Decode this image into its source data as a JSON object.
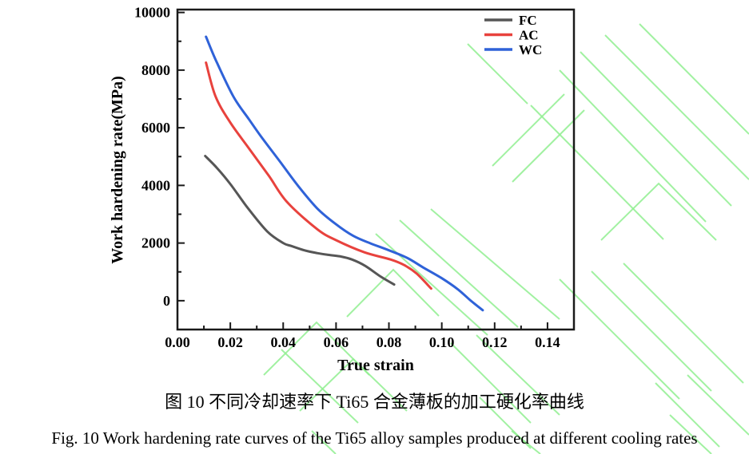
{
  "figure": {
    "caption_zh": "图 10  不同冷却速率下 Ti65 合金薄板的加工硬化率曲线",
    "caption_en": "Fig. 10 Work hardening rate curves of the Ti65 alloy samples produced at different cooling rates"
  },
  "watermark": {
    "color": "#90ee90"
  },
  "chart_data": {
    "type": "line",
    "title": "",
    "xlabel": "True strain",
    "ylabel": "Work hardening rate(MPa)",
    "xlim": [
      0,
      0.15
    ],
    "ylim": [
      -1000,
      10100
    ],
    "x_major_ticks": [
      0,
      0.02,
      0.04,
      0.06,
      0.08,
      0.1,
      0.12,
      0.14
    ],
    "x_minor_ticks": [
      0.01,
      0.03,
      0.05,
      0.07,
      0.09,
      0.11,
      0.13
    ],
    "y_major_ticks": [
      0,
      2000,
      4000,
      6000,
      8000,
      10000
    ],
    "y_minor_ticks": [
      1000,
      3000,
      5000,
      7000,
      9000
    ],
    "grid": false,
    "legend_position": "upper right inside",
    "series": [
      {
        "name": "FC",
        "color": "#565656",
        "points": [
          [
            0.0105,
            5020
          ],
          [
            0.015,
            4600
          ],
          [
            0.02,
            4050
          ],
          [
            0.0265,
            3230
          ],
          [
            0.034,
            2400
          ],
          [
            0.04,
            2000
          ],
          [
            0.043,
            1900
          ],
          [
            0.048,
            1750
          ],
          [
            0.053,
            1650
          ],
          [
            0.057,
            1590
          ],
          [
            0.062,
            1530
          ],
          [
            0.066,
            1430
          ],
          [
            0.071,
            1210
          ],
          [
            0.077,
            830
          ],
          [
            0.082,
            560
          ]
        ]
      },
      {
        "name": "AC",
        "color": "#e8423d",
        "points": [
          [
            0.0108,
            8260
          ],
          [
            0.0144,
            7090
          ],
          [
            0.02,
            6180
          ],
          [
            0.0274,
            5240
          ],
          [
            0.0346,
            4330
          ],
          [
            0.0415,
            3420
          ],
          [
            0.0529,
            2480
          ],
          [
            0.06,
            2100
          ],
          [
            0.0707,
            1680
          ],
          [
            0.0806,
            1430
          ],
          [
            0.0857,
            1240
          ],
          [
            0.0905,
            940
          ],
          [
            0.096,
            420
          ]
        ]
      },
      {
        "name": "WC",
        "color": "#2f62d8",
        "points": [
          [
            0.0108,
            9160
          ],
          [
            0.0145,
            8350
          ],
          [
            0.0211,
            7090
          ],
          [
            0.027,
            6300
          ],
          [
            0.0316,
            5700
          ],
          [
            0.039,
            4800
          ],
          [
            0.0455,
            4000
          ],
          [
            0.0529,
            3200
          ],
          [
            0.06,
            2650
          ],
          [
            0.0665,
            2250
          ],
          [
            0.073,
            1990
          ],
          [
            0.08,
            1750
          ],
          [
            0.087,
            1480
          ],
          [
            0.093,
            1150
          ],
          [
            0.1,
            780
          ],
          [
            0.106,
            400
          ],
          [
            0.111,
            0
          ],
          [
            0.1155,
            -330
          ]
        ]
      }
    ]
  }
}
